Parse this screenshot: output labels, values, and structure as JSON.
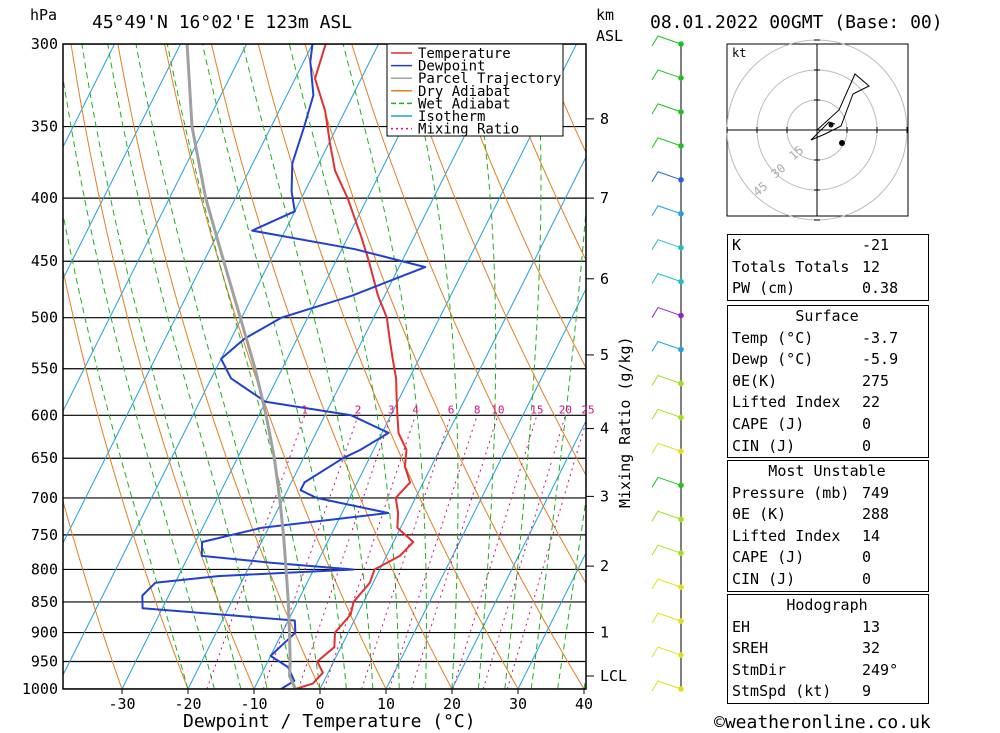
{
  "header": {
    "p_unit": "hPa",
    "location": "45°49'N  16°02'E  123m  ASL",
    "km_unit_1": "km",
    "km_unit_2": "ASL",
    "datetime": "08.01.2022  00GMT  (Base: 00)"
  },
  "axes": {
    "xlabel": "Dewpoint / Temperature (°C)",
    "mixing_label": "Mixing Ratio (g/kg)",
    "lcl_label": "LCL"
  },
  "legend": [
    "Temperature",
    "Dewpoint",
    "Parcel Trajectory",
    "Dry Adiabat",
    "Wet Adiabat",
    "Isotherm",
    "Mixing Ratio"
  ],
  "colors": {
    "temperature": "#e03030",
    "dewpoint": "#2040d0",
    "parcel": "#a0a0a0",
    "dry_adiabat": "#e08020",
    "wet_adiabat": "#20b020",
    "isotherm": "#20a0e0",
    "mixing_ratio": "#d01080"
  },
  "chart_data": {
    "type": "line",
    "title": "45°49'N  16°02'E  123m  ASL",
    "x_ticks": [
      -30,
      -20,
      -10,
      0,
      10,
      20,
      30,
      40
    ],
    "p_ticks": [
      300,
      350,
      400,
      450,
      500,
      550,
      600,
      650,
      700,
      750,
      800,
      850,
      900,
      950,
      1000
    ],
    "km_ticks": [
      {
        "label": "1",
        "p": 900
      },
      {
        "label": "2",
        "p": 795
      },
      {
        "label": "3",
        "p": 698
      },
      {
        "label": "4",
        "p": 615
      },
      {
        "label": "5",
        "p": 536
      },
      {
        "label": "6",
        "p": 465
      },
      {
        "label": "7",
        "p": 400
      },
      {
        "label": "8",
        "p": 345
      }
    ],
    "lcl_p": 976,
    "mixing_ratio_labels": [
      "1",
      "2",
      "3",
      "4",
      "6",
      "8",
      "10",
      "15",
      "20",
      "25"
    ],
    "series": [
      {
        "name": "Temperature",
        "points": [
          [
            1000,
            -3.7
          ],
          [
            990,
            -1.5
          ],
          [
            970,
            -0.8
          ],
          [
            950,
            -2.5
          ],
          [
            925,
            -1
          ],
          [
            900,
            -2
          ],
          [
            870,
            -1
          ],
          [
            850,
            -1.5
          ],
          [
            820,
            -0.5
          ],
          [
            800,
            -0.8
          ],
          [
            780,
            2
          ],
          [
            760,
            3
          ],
          [
            740,
            -0.5
          ],
          [
            720,
            -1.5
          ],
          [
            700,
            -3
          ],
          [
            680,
            -2
          ],
          [
            660,
            -4
          ],
          [
            640,
            -5
          ],
          [
            620,
            -7.5
          ],
          [
            600,
            -9
          ],
          [
            580,
            -10.5
          ],
          [
            560,
            -12
          ],
          [
            540,
            -14
          ],
          [
            520,
            -16
          ],
          [
            500,
            -18
          ],
          [
            480,
            -21
          ],
          [
            450,
            -25
          ],
          [
            430,
            -28
          ],
          [
            400,
            -33
          ],
          [
            380,
            -37
          ],
          [
            360,
            -40
          ],
          [
            340,
            -43
          ],
          [
            320,
            -47
          ],
          [
            300,
            -48
          ]
        ]
      },
      {
        "name": "Dewpoint",
        "points": [
          [
            1000,
            -5.9
          ],
          [
            985,
            -4.5
          ],
          [
            960,
            -6.5
          ],
          [
            940,
            -10
          ],
          [
            920,
            -9
          ],
          [
            900,
            -8
          ],
          [
            880,
            -9
          ],
          [
            860,
            -33
          ],
          [
            840,
            -34
          ],
          [
            820,
            -33
          ],
          [
            810,
            -24
          ],
          [
            800,
            -4
          ],
          [
            790,
            -17
          ],
          [
            780,
            -28
          ],
          [
            760,
            -29
          ],
          [
            740,
            -21
          ],
          [
            720,
            -3
          ],
          [
            700,
            -15
          ],
          [
            690,
            -18
          ],
          [
            680,
            -18
          ],
          [
            650,
            -14
          ],
          [
            640,
            -12
          ],
          [
            620,
            -9
          ],
          [
            600,
            -16
          ],
          [
            585,
            -30
          ],
          [
            560,
            -37
          ],
          [
            540,
            -40
          ],
          [
            520,
            -38
          ],
          [
            500,
            -34
          ],
          [
            480,
            -25
          ],
          [
            455,
            -16
          ],
          [
            440,
            -28
          ],
          [
            425,
            -45
          ],
          [
            410,
            -40
          ],
          [
            395,
            -42
          ],
          [
            375,
            -44
          ],
          [
            350,
            -45
          ],
          [
            330,
            -46
          ],
          [
            310,
            -49
          ],
          [
            300,
            -50
          ]
        ]
      },
      {
        "name": "Parcel Trajectory",
        "points": [
          [
            1000,
            -3.7
          ],
          [
            976,
            -5.6
          ],
          [
            950,
            -6.6
          ],
          [
            900,
            -8.9
          ],
          [
            850,
            -11.4
          ],
          [
            800,
            -14.2
          ],
          [
            750,
            -17.2
          ],
          [
            700,
            -20.6
          ],
          [
            650,
            -24.4
          ],
          [
            600,
            -28.9
          ],
          [
            550,
            -34.1
          ],
          [
            500,
            -40.2
          ],
          [
            450,
            -47
          ],
          [
            400,
            -54.5
          ],
          [
            350,
            -62
          ],
          [
            300,
            -69
          ]
        ]
      }
    ]
  },
  "wind_dots": [
    "#20c020",
    "#20c020",
    "#20c020",
    "#20c020",
    "#2060e0",
    "#20a0e0",
    "#20c0c0",
    "#20c0c0",
    "#9020c0",
    "#20a0e0",
    "#a0e020",
    "#a0e020",
    "#e0e020",
    "#20c020",
    "#a0e020",
    "#a0e020",
    "#e0e020",
    "#e0e020",
    "#e0e020",
    "#e0e020"
  ],
  "hodograph": {
    "unit": "kt",
    "rings": [
      "15",
      "30",
      "45"
    ]
  },
  "indices": [
    {
      "label": "K",
      "value": "-21"
    },
    {
      "label": "Totals Totals",
      "value": "12"
    },
    {
      "label": "PW (cm)",
      "value": "0.38"
    }
  ],
  "surface": {
    "title": "Surface",
    "rows": [
      {
        "label": "Temp (°C)",
        "value": "-3.7"
      },
      {
        "label": "Dewp (°C)",
        "value": "-5.9"
      },
      {
        "label": "θE(K)",
        "value": "275"
      },
      {
        "label": "Lifted Index",
        "value": "22"
      },
      {
        "label": "CAPE (J)",
        "value": "0"
      },
      {
        "label": "CIN (J)",
        "value": "0"
      }
    ]
  },
  "most_unstable": {
    "title": "Most Unstable",
    "rows": [
      {
        "label": "Pressure (mb)",
        "value": "749"
      },
      {
        "label": "θE (K)",
        "value": "288"
      },
      {
        "label": "Lifted Index",
        "value": "14"
      },
      {
        "label": "CAPE (J)",
        "value": "0"
      },
      {
        "label": "CIN (J)",
        "value": "0"
      }
    ]
  },
  "hodo_table": {
    "title": "Hodograph",
    "rows": [
      {
        "label": "EH",
        "value": "13"
      },
      {
        "label": "SREH",
        "value": "32"
      },
      {
        "label": "StmDir",
        "value": "249°"
      },
      {
        "label": "StmSpd (kt)",
        "value": "9"
      }
    ]
  },
  "footer": "©weatheronline.co.uk"
}
